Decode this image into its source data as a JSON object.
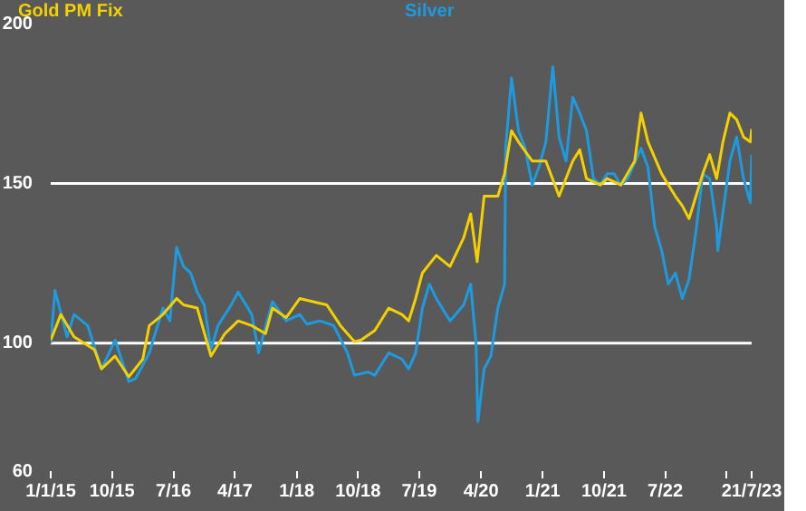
{
  "chart_data": {
    "type": "line",
    "xlim": [
      "2015-01-01",
      "2023-07-21"
    ],
    "xticks": [
      {
        "value": "2015-01-01",
        "label": "1/1/15"
      },
      {
        "value": "2015-10-01",
        "label": "10/15"
      },
      {
        "value": "2016-07-01",
        "label": "7/16"
      },
      {
        "value": "2017-04-01",
        "label": "4/17"
      },
      {
        "value": "2018-01-01",
        "label": "1/18"
      },
      {
        "value": "2018-10-01",
        "label": "10/18"
      },
      {
        "value": "2019-07-01",
        "label": "7/19"
      },
      {
        "value": "2020-04-01",
        "label": "4/20"
      },
      {
        "value": "2021-01-01",
        "label": "1/21"
      },
      {
        "value": "2021-10-01",
        "label": "10/21"
      },
      {
        "value": "2022-07-01",
        "label": "7/22"
      },
      {
        "value": "2023-04-01",
        "label": null
      },
      {
        "value": "2023-07-21",
        "label": "21/7/23"
      }
    ],
    "ylim": [
      60,
      200
    ],
    "yticks": [
      60,
      100,
      150,
      200
    ],
    "ref_lines": [
      {
        "axis": "y",
        "value": 100,
        "color": "#ffffff"
      },
      {
        "axis": "y",
        "value": 150,
        "color": "#ffffff"
      }
    ],
    "legend": "top",
    "series": [
      {
        "name": "Gold PM Fix",
        "color": "#f5d000",
        "x": [
          "2015-01-01",
          "2015-02",
          "2015-04",
          "2015-07",
          "2015-08",
          "2015-10",
          "2015-12",
          "2016-02",
          "2016-03",
          "2016-05",
          "2016-07",
          "2016-08",
          "2016-10",
          "2016-12",
          "2017-02",
          "2017-04",
          "2017-06",
          "2017-08",
          "2017-09",
          "2017-11",
          "2018-01",
          "2018-03",
          "2018-05",
          "2018-07",
          "2018-09",
          "2018-10",
          "2018-12",
          "2019-02",
          "2019-04",
          "2019-05",
          "2019-06",
          "2019-07",
          "2019-09",
          "2019-11",
          "2020-01",
          "2020-02",
          "2020-03",
          "2020-04",
          "2020-06",
          "2020-07",
          "2020-08",
          "2020-09",
          "2020-11",
          "2021-01",
          "2021-03",
          "2021-05",
          "2021-06",
          "2021-07",
          "2021-09",
          "2021-10",
          "2021-12",
          "2022-02",
          "2022-03",
          "2022-04",
          "2022-06",
          "2022-08",
          "2022-09",
          "2022-10",
          "2022-11",
          "2022-12",
          "2023-01",
          "2023-02",
          "2023-03",
          "2023-04",
          "2023-05",
          "2023-06",
          "2023-07",
          "2023-07-21"
        ],
        "values": [
          101,
          109,
          102,
          98,
          92,
          96,
          89.5,
          95,
          105.5,
          109,
          114,
          112,
          111,
          96,
          103,
          107,
          105.5,
          103,
          111,
          108,
          114,
          113,
          112,
          105.5,
          100.5,
          101,
          104,
          111,
          109,
          107,
          114,
          122,
          127.5,
          124,
          133,
          140.5,
          125.5,
          146,
          146,
          153,
          166.5,
          163,
          157,
          157,
          146,
          157,
          160.5,
          151.5,
          149.5,
          151.5,
          149.5,
          157,
          172,
          163,
          153,
          146,
          143,
          139,
          146,
          153,
          159,
          151.5,
          163,
          172,
          170,
          164.5,
          163,
          167
        ]
      },
      {
        "name": "Silver",
        "color": "#1e9be0",
        "x": [
          "2015-01-01",
          "2015-01-20",
          "2015-03",
          "2015-04",
          "2015-06",
          "2015-08",
          "2015-10",
          "2015-12",
          "2016-01",
          "2016-03",
          "2016-05",
          "2016-06",
          "2016-07",
          "2016-08",
          "2016-09",
          "2016-10",
          "2016-11",
          "2016-12",
          "2017-01",
          "2017-03",
          "2017-04",
          "2017-06",
          "2017-07",
          "2017-09",
          "2017-11",
          "2018-01",
          "2018-02",
          "2018-04",
          "2018-06",
          "2018-08",
          "2018-09",
          "2018-11",
          "2018-12",
          "2019-02",
          "2019-04",
          "2019-05",
          "2019-06",
          "2019-07",
          "2019-08",
          "2019-09",
          "2019-11",
          "2020-01",
          "2020-02",
          "2020-03-10",
          "2020-03-18",
          "2020-04",
          "2020-05",
          "2020-06",
          "2020-07",
          "2020-07-20",
          "2020-08",
          "2020-09",
          "2020-10",
          "2020-11",
          "2020-12",
          "2021-01",
          "2021-02",
          "2021-03",
          "2021-04",
          "2021-05",
          "2021-06",
          "2021-07",
          "2021-08",
          "2021-09",
          "2021-10",
          "2021-11",
          "2021-12",
          "2022-01",
          "2022-03",
          "2022-04",
          "2022-05",
          "2022-06",
          "2022-07",
          "2022-08",
          "2022-09",
          "2022-10",
          "2022-11",
          "2022-12",
          "2023-01",
          "2023-02",
          "2023-02-20",
          "2023-04",
          "2023-05",
          "2023-06",
          "2023-07",
          "2023-07-21"
        ],
        "values": [
          100,
          116.5,
          102,
          109,
          105.5,
          92,
          101,
          88,
          89,
          97,
          111,
          107,
          130,
          124,
          122,
          116,
          112,
          98,
          105.5,
          112,
          116,
          109,
          97,
          113,
          107,
          109,
          106,
          107,
          105.5,
          97,
          90,
          91,
          90,
          97,
          95,
          92,
          97,
          111,
          118.5,
          114,
          107,
          112,
          118.5,
          100,
          75.5,
          92,
          96,
          111,
          118.5,
          161,
          183,
          166.5,
          161,
          149.5,
          155,
          163,
          186.5,
          164.5,
          157,
          177,
          172,
          166.5,
          151.5,
          149.5,
          153,
          153,
          149.5,
          151.5,
          161,
          155,
          136.5,
          129,
          118.5,
          122,
          114,
          120,
          135,
          153,
          151.5,
          136.5,
          129,
          157,
          164.5,
          151.5,
          144,
          159
        ]
      }
    ]
  }
}
